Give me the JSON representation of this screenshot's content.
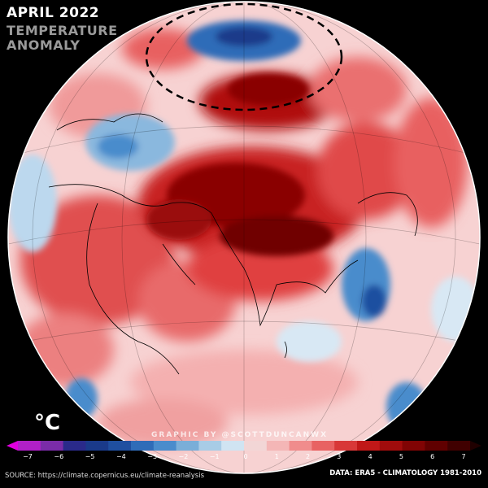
{
  "header": {
    "title": "APRIL 2022",
    "subtitle_line1": "TEMPERATURE",
    "subtitle_line2": "ANOMALY"
  },
  "legend": {
    "unit": "°C",
    "ticks": [
      "−7",
      "−6",
      "−5",
      "−4",
      "−3",
      "−2",
      "−1",
      "0",
      "1",
      "2",
      "3",
      "4",
      "5",
      "6",
      "7"
    ],
    "colors": [
      "#e000e0",
      "#b020c8",
      "#7a2ca8",
      "#2a2a8a",
      "#1a3a8a",
      "#1f4fa0",
      "#2f6cb8",
      "#4a8ccc",
      "#7aaed8",
      "#a8cce6",
      "#d0e4f2",
      "#f2d6d6",
      "#f4b6b6",
      "#f08c8c",
      "#e86262",
      "#d83838",
      "#c01818",
      "#a00c0c",
      "#800404",
      "#600000",
      "#400000",
      "#200000"
    ]
  },
  "credit": "GRAPHIC BY @SCOTTDUNCANWX",
  "footer": {
    "source": "SOURCE: https://climate.copernicus.eu/climate-reanalysis",
    "data_note": "DATA: ERA5 - CLIMATOLOGY 1981-2010"
  }
}
